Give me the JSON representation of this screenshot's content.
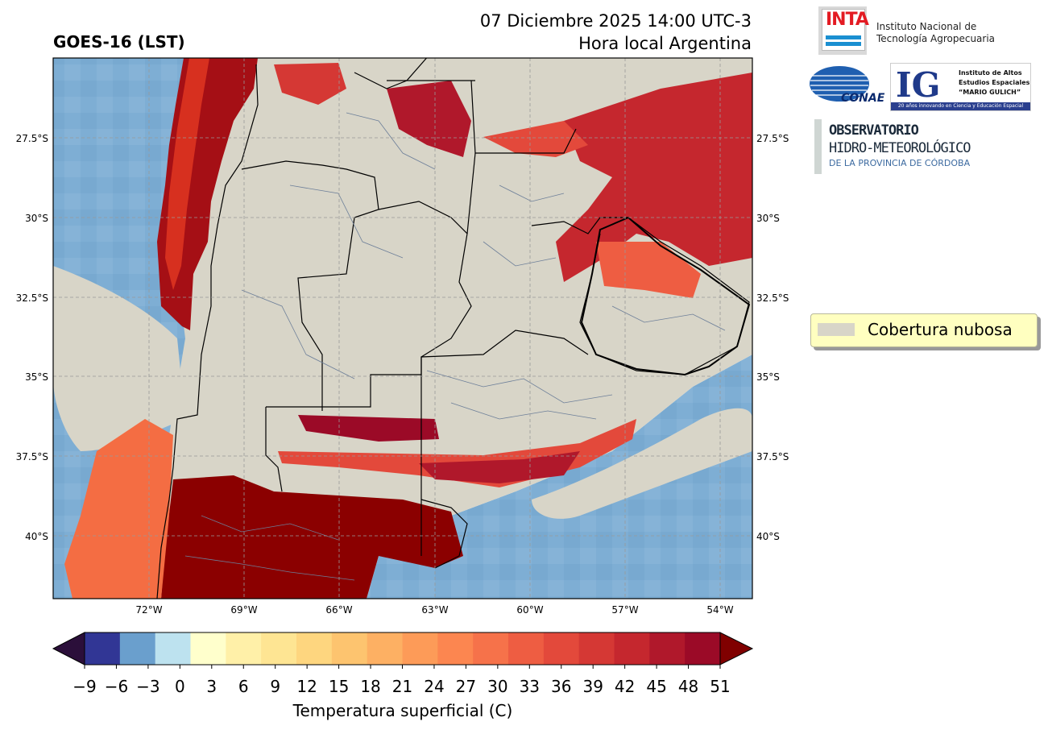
{
  "header": {
    "product": "GOES-16 (LST)",
    "datetime": "07 Diciembre 2025 14:00 UTC-3",
    "local_time_label": "Hora local Argentina"
  },
  "map": {
    "lat_ticks": [
      "27.5°S",
      "30°S",
      "32.5°S",
      "35°S",
      "37.5°S",
      "40°S"
    ],
    "lon_ticks": [
      "72°W",
      "69°W",
      "66°W",
      "63°W",
      "60°W",
      "57°W",
      "54°W"
    ],
    "colors": {
      "cloud": "#d8d5c8",
      "ocean": "#7eaed4",
      "hot": "#8b0000",
      "warm": "#e34a33",
      "mild": "#fb8d59",
      "border": "#000000",
      "district": "#6d7f99"
    }
  },
  "legend": {
    "label": "Cobertura nubosa"
  },
  "colorbar": {
    "label": "Temperatura superficial (C)",
    "ticks": [
      "−9",
      "−6",
      "−3",
      "0",
      "3",
      "6",
      "9",
      "12",
      "15",
      "18",
      "21",
      "24",
      "27",
      "30",
      "33",
      "36",
      "39",
      "42",
      "45",
      "48",
      "51"
    ],
    "colors": [
      "#313695",
      "#6a9fcd",
      "#bde2ef",
      "#ffffcc",
      "#fff0a8",
      "#fee593",
      "#fed67f",
      "#fdc46f",
      "#fdb063",
      "#fd9b58",
      "#fc8650",
      "#f6724a",
      "#ee5d42",
      "#e3493b",
      "#d53834",
      "#c5272e",
      "#b0182b",
      "#9b0a27"
    ],
    "under_color": "#2b0f3a",
    "over_color": "#800000"
  },
  "logos": {
    "inta_mark": "INTA",
    "inta_name_1": "Instituto Nacional de",
    "inta_name_2": "Tecnología Agropecuaria",
    "conae": "CONAE",
    "ig_letters": "IG",
    "ig_name_1": "Instituto de Altos",
    "ig_name_2": "Estudios Espaciales",
    "ig_name_3": "“MARIO GULICH”",
    "ig_footer": "20 años innovando en Ciencia y Educación Espacial",
    "obs_1": "OBSERVATORIO",
    "obs_2": "HIDRO-METEOROLÓGICO",
    "obs_3": "DE LA PROVINCIA DE CÓRDOBA"
  }
}
